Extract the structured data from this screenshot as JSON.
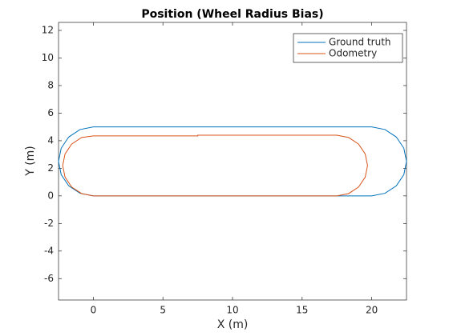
{
  "chart_data": {
    "type": "line",
    "title": "Position (Wheel Radius Bias)",
    "x_label": "X (m)",
    "y_label": "Y (m)",
    "xlim": [
      -2.5,
      22.5
    ],
    "ylim": [
      -7.55,
      12.58
    ],
    "xticks": [
      0,
      5,
      10,
      15,
      20
    ],
    "yticks": [
      -6,
      -4,
      -2,
      0,
      2,
      4,
      6,
      8,
      10,
      12
    ],
    "legend": "northeast",
    "series": [
      {
        "name": "Ground truth",
        "color": "#0072BD",
        "x": [
          0,
          20,
          20.957,
          21.768,
          22.31,
          22.5,
          22.31,
          21.768,
          20.957,
          20,
          0,
          -0.957,
          -1.768,
          -2.31,
          -2.5,
          -2.31,
          -1.768,
          -0.957,
          0
        ],
        "values": [
          0,
          0,
          0.19,
          0.732,
          1.543,
          2.5,
          3.457,
          4.268,
          4.81,
          5,
          5,
          4.81,
          4.268,
          3.457,
          2.5,
          1.543,
          0.732,
          0.19,
          0
        ]
      },
      {
        "name": "Odometry",
        "color": "#D95319",
        "x": [
          0,
          17.5,
          18.342,
          19.056,
          19.533,
          19.7,
          19.533,
          19.056,
          18.342,
          17.5,
          7.5,
          7.5,
          0,
          -0.842,
          -1.556,
          -2.033,
          -2.2,
          -2.033,
          -1.556,
          -0.842,
          0
        ],
        "values": [
          0,
          0,
          0.167,
          0.644,
          1.358,
          2.2,
          3.042,
          3.756,
          4.233,
          4.4,
          4.4,
          4.35,
          4.35,
          4.233,
          3.756,
          3.042,
          2.2,
          1.358,
          0.644,
          0.167,
          0
        ]
      }
    ]
  }
}
